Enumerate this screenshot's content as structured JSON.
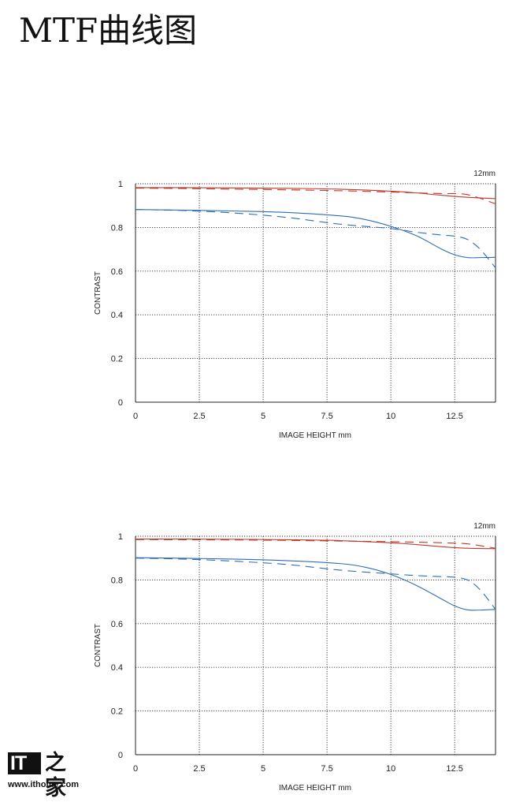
{
  "page": {
    "title": "MTF曲线图"
  },
  "watermark": {
    "logo_text": "IT之家",
    "url": "www.ithome.com"
  },
  "chart_data": [
    {
      "type": "line",
      "corner_label": "12mm",
      "xlabel": "IMAGE HEIGHT mm",
      "ylabel": "CONTRAST",
      "xlim": [
        0,
        14.1
      ],
      "ylim": [
        0,
        1
      ],
      "xticks": [
        0,
        2.5,
        5,
        7.5,
        10,
        12.5
      ],
      "xtick_labels": [
        "0",
        "2.5",
        "5",
        "7.5",
        "10",
        "12.5"
      ],
      "yticks": [
        0,
        0.2,
        0.4,
        0.6,
        0.8,
        1
      ],
      "ytick_labels": [
        "0",
        "0.2",
        "0.4",
        "0.6",
        "0.8",
        "1"
      ],
      "grid": true,
      "series": [
        {
          "color": "#c0392b",
          "dash": false,
          "x": [
            0,
            2,
            4,
            6,
            8,
            10,
            11,
            12,
            13,
            14.1
          ],
          "y": [
            0.982,
            0.982,
            0.981,
            0.979,
            0.975,
            0.966,
            0.958,
            0.947,
            0.938,
            0.932
          ]
        },
        {
          "color": "#c0392b",
          "dash": true,
          "x": [
            0,
            2,
            4,
            6,
            8,
            10,
            11,
            12,
            13,
            14.1
          ],
          "y": [
            0.98,
            0.978,
            0.975,
            0.972,
            0.968,
            0.962,
            0.958,
            0.955,
            0.95,
            0.908
          ]
        },
        {
          "color": "#2f6cb5",
          "dash": false,
          "x": [
            0,
            2,
            4,
            6,
            8,
            9,
            10,
            11,
            12,
            12.5,
            13,
            13.5,
            14.1
          ],
          "y": [
            0.882,
            0.879,
            0.875,
            0.868,
            0.853,
            0.836,
            0.805,
            0.762,
            0.7,
            0.675,
            0.662,
            0.662,
            0.663
          ]
        },
        {
          "color": "#2f6cb5",
          "dash": true,
          "x": [
            0,
            2,
            4,
            6,
            8,
            10,
            11,
            12,
            12.5,
            13,
            13.5,
            14.1
          ],
          "y": [
            0.882,
            0.877,
            0.865,
            0.845,
            0.815,
            0.795,
            0.778,
            0.765,
            0.76,
            0.745,
            0.7,
            0.615
          ]
        }
      ]
    },
    {
      "type": "line",
      "corner_label": "12mm",
      "xlabel": "IMAGE HEIGHT mm",
      "ylabel": "CONTRAST",
      "xlim": [
        0,
        14.1
      ],
      "ylim": [
        0,
        1
      ],
      "xticks": [
        0,
        2.5,
        5,
        7.5,
        10,
        12.5
      ],
      "xtick_labels": [
        "0",
        "2.5",
        "5",
        "7.5",
        "10",
        "12.5"
      ],
      "yticks": [
        0,
        0.2,
        0.4,
        0.6,
        0.8,
        1
      ],
      "ytick_labels": [
        "0",
        "0.2",
        "0.4",
        "0.6",
        "0.8",
        "1"
      ],
      "grid": true,
      "series": [
        {
          "color": "#c0392b",
          "dash": false,
          "x": [
            0,
            2,
            4,
            6,
            8,
            10,
            11,
            12,
            13,
            14.1
          ],
          "y": [
            0.987,
            0.987,
            0.986,
            0.984,
            0.98,
            0.97,
            0.962,
            0.952,
            0.945,
            0.943
          ]
        },
        {
          "color": "#c0392b",
          "dash": true,
          "x": [
            0,
            2,
            4,
            6,
            8,
            10,
            11,
            12,
            13,
            14.1
          ],
          "y": [
            0.985,
            0.984,
            0.983,
            0.981,
            0.978,
            0.975,
            0.973,
            0.97,
            0.965,
            0.945
          ]
        },
        {
          "color": "#2f6cb5",
          "dash": false,
          "x": [
            0,
            2,
            4,
            6,
            8,
            9,
            10,
            11,
            12,
            12.5,
            13,
            13.5,
            14.1
          ],
          "y": [
            0.902,
            0.899,
            0.895,
            0.888,
            0.875,
            0.858,
            0.825,
            0.775,
            0.712,
            0.681,
            0.663,
            0.662,
            0.665
          ]
        },
        {
          "color": "#2f6cb5",
          "dash": true,
          "x": [
            0,
            2,
            4,
            6,
            8,
            10,
            11,
            12,
            12.5,
            13,
            13.5,
            14.1
          ],
          "y": [
            0.9,
            0.895,
            0.885,
            0.87,
            0.845,
            0.828,
            0.82,
            0.815,
            0.812,
            0.8,
            0.755,
            0.665
          ]
        }
      ]
    }
  ]
}
